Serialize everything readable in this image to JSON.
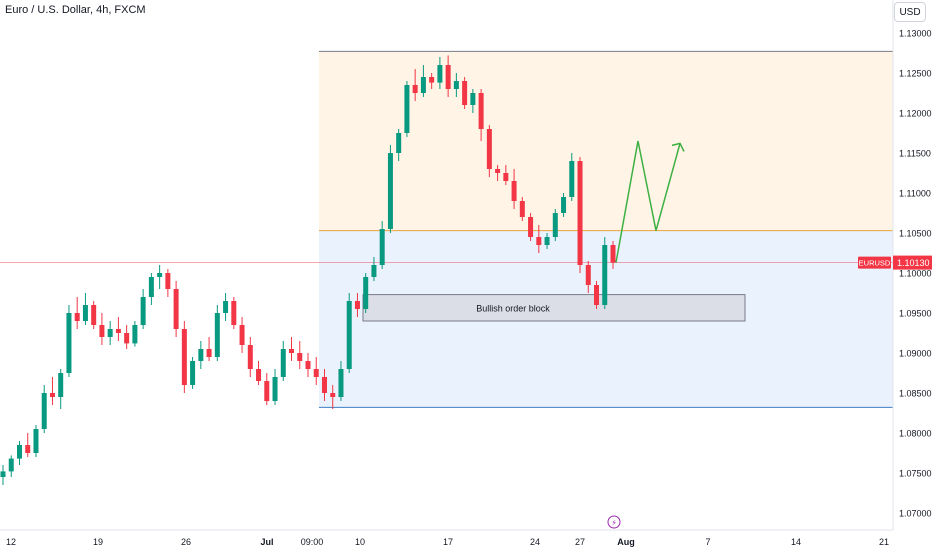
{
  "header": {
    "symbol_title": "Euro / U.S. Dollar, 4h, FXCM",
    "currency_button": "USD"
  },
  "annotations": {
    "order_block_label": "Bullish order block"
  },
  "colors": {
    "up": "#089981",
    "down": "#f23645",
    "price_line": "#f23645",
    "premium_zone": "#fff4e5",
    "discount_zone": "#eaf2fe",
    "premium_line": "#e8a33a",
    "discount_line": "#3d7fc4",
    "arrow": "#3cb043"
  },
  "chart_data": {
    "type": "candlestick",
    "symbol": "EURUSD",
    "interval": "4h",
    "last_price": 1.1013,
    "last_price_label": "1.10130",
    "symbol_tag": "EURUSD",
    "ylim": [
      1.0695,
      1.1325
    ],
    "y_ticks": [
      "1.07000",
      "1.07500",
      "1.08000",
      "1.08500",
      "1.09000",
      "1.09500",
      "1.10000",
      "1.10500",
      "1.11000",
      "1.11500",
      "1.12000",
      "1.12500",
      "1.13000"
    ],
    "x_ticks": [
      "12",
      "19",
      "26",
      "Jul",
      "09:00",
      "10",
      "17",
      "24",
      "27",
      "Aug",
      "7",
      "14",
      "21"
    ],
    "candle_ohlc": [
      [
        1.0745,
        1.076,
        1.0735,
        1.0752
      ],
      [
        1.0752,
        1.0772,
        1.0745,
        1.0768
      ],
      [
        1.0768,
        1.079,
        1.076,
        1.0785
      ],
      [
        1.0785,
        1.08,
        1.077,
        1.0775
      ],
      [
        1.0775,
        1.081,
        1.077,
        1.0805
      ],
      [
        1.0805,
        1.086,
        1.08,
        1.085
      ],
      [
        1.085,
        1.087,
        1.0835,
        1.0845
      ],
      [
        1.0845,
        1.088,
        1.083,
        1.0875
      ],
      [
        1.0875,
        1.096,
        1.087,
        1.095
      ],
      [
        1.095,
        1.097,
        1.093,
        1.094
      ],
      [
        1.094,
        1.0975,
        1.0935,
        1.096
      ],
      [
        1.096,
        1.0965,
        1.093,
        1.0935
      ],
      [
        1.0935,
        1.095,
        1.091,
        1.092
      ],
      [
        1.092,
        1.094,
        1.091,
        1.093
      ],
      [
        1.093,
        1.0945,
        1.0915,
        1.0925
      ],
      [
        1.0925,
        1.0935,
        1.0905,
        1.0912
      ],
      [
        1.0912,
        1.094,
        1.0908,
        1.0935
      ],
      [
        1.0935,
        1.098,
        1.093,
        1.097
      ],
      [
        1.097,
        1.1,
        1.096,
        1.0995
      ],
      [
        1.0995,
        1.101,
        1.098,
        1.1
      ],
      [
        1.1,
        1.1005,
        1.097,
        1.098
      ],
      [
        1.098,
        1.099,
        1.092,
        1.093
      ],
      [
        1.093,
        1.094,
        1.085,
        1.086
      ],
      [
        1.086,
        1.0895,
        1.0855,
        1.089
      ],
      [
        1.089,
        1.0915,
        1.088,
        1.0905
      ],
      [
        1.0905,
        1.092,
        1.089,
        1.0895
      ],
      [
        1.0895,
        1.096,
        1.089,
        1.095
      ],
      [
        1.095,
        1.0975,
        1.094,
        1.0965
      ],
      [
        1.0965,
        1.097,
        1.093,
        1.0935
      ],
      [
        1.0935,
        1.0945,
        1.09,
        1.091
      ],
      [
        1.091,
        1.092,
        1.087,
        1.088
      ],
      [
        1.088,
        1.089,
        1.086,
        1.0865
      ],
      [
        1.0865,
        1.0875,
        1.0835,
        1.084
      ],
      [
        1.084,
        1.088,
        1.0835,
        1.087
      ],
      [
        1.087,
        1.0915,
        1.0865,
        1.0905
      ],
      [
        1.0905,
        1.092,
        1.089,
        1.09
      ],
      [
        1.09,
        1.0915,
        1.088,
        1.089
      ],
      [
        1.089,
        1.09,
        1.087,
        1.088
      ],
      [
        1.088,
        1.0895,
        1.086,
        1.087
      ],
      [
        1.087,
        1.088,
        1.084,
        1.085
      ],
      [
        1.085,
        1.086,
        1.083,
        1.0845
      ],
      [
        1.0845,
        1.089,
        1.084,
        1.088
      ],
      [
        1.088,
        1.0975,
        1.0875,
        1.0965
      ],
      [
        1.0965,
        1.0975,
        1.0945,
        1.0955
      ],
      [
        1.0955,
        1.1,
        1.095,
        1.0995
      ],
      [
        1.0995,
        1.102,
        1.099,
        1.101
      ],
      [
        1.101,
        1.1065,
        1.1005,
        1.1055
      ],
      [
        1.1055,
        1.116,
        1.105,
        1.115
      ],
      [
        1.115,
        1.118,
        1.114,
        1.1175
      ],
      [
        1.1175,
        1.124,
        1.117,
        1.1235
      ],
      [
        1.1235,
        1.1255,
        1.1215,
        1.1225
      ],
      [
        1.1225,
        1.126,
        1.122,
        1.1245
      ],
      [
        1.1245,
        1.125,
        1.123,
        1.1238
      ],
      [
        1.1238,
        1.127,
        1.123,
        1.126
      ],
      [
        1.126,
        1.1272,
        1.122,
        1.123
      ],
      [
        1.123,
        1.125,
        1.122,
        1.124
      ],
      [
        1.124,
        1.1245,
        1.1205,
        1.121
      ],
      [
        1.121,
        1.123,
        1.12,
        1.1225
      ],
      [
        1.1225,
        1.123,
        1.1165,
        1.118
      ],
      [
        1.118,
        1.1185,
        1.112,
        1.113
      ],
      [
        1.113,
        1.1135,
        1.1115,
        1.1125
      ],
      [
        1.1125,
        1.1135,
        1.111,
        1.1115
      ],
      [
        1.1115,
        1.113,
        1.108,
        1.109
      ],
      [
        1.109,
        1.1095,
        1.1065,
        1.107
      ],
      [
        1.107,
        1.1075,
        1.104,
        1.1045
      ],
      [
        1.1045,
        1.106,
        1.1025,
        1.1035
      ],
      [
        1.1035,
        1.105,
        1.103,
        1.1045
      ],
      [
        1.1045,
        1.108,
        1.104,
        1.1075
      ],
      [
        1.1075,
        1.11,
        1.107,
        1.1095
      ],
      [
        1.1095,
        1.115,
        1.109,
        1.114
      ],
      [
        1.114,
        1.1145,
        1.1,
        1.101
      ],
      [
        1.101,
        1.1015,
        1.0975,
        1.0985
      ],
      [
        1.0985,
        1.099,
        1.0955,
        1.096
      ],
      [
        1.096,
        1.1045,
        1.0955,
        1.1035
      ],
      [
        1.1035,
        1.104,
        1.1005,
        1.1013
      ]
    ],
    "zones": [
      {
        "name": "premium",
        "from_price": 1.1053,
        "to_price": 1.1277
      },
      {
        "name": "discount",
        "from_price": 1.0832,
        "to_price": 1.1053
      }
    ],
    "order_block": {
      "from_price": 1.094,
      "to_price": 1.0973
    },
    "projection_path": [
      1.1013,
      1.1165,
      1.1053,
      1.1162
    ]
  }
}
